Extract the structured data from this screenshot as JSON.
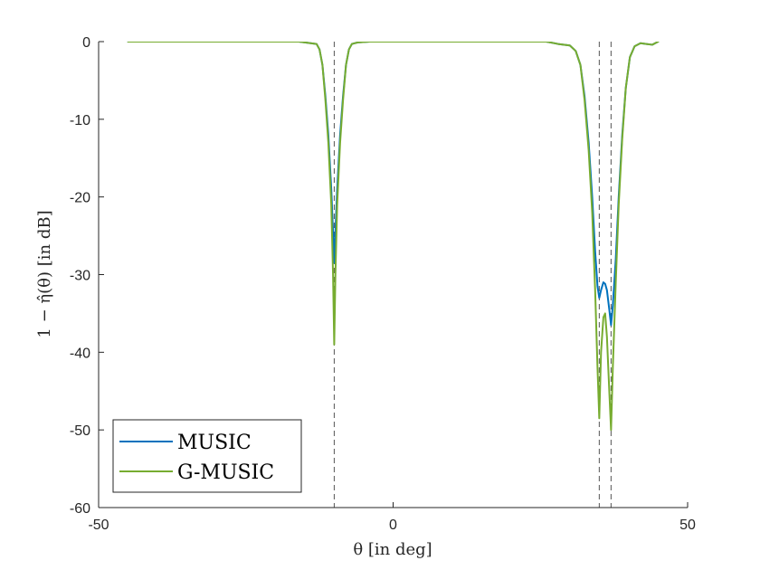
{
  "chart_data": {
    "type": "line",
    "title": "",
    "xlabel": "θ [in deg]",
    "ylabel": "1 − η̂(θ) [in dB]",
    "xlim": [
      -50,
      50
    ],
    "ylim": [
      -60,
      0
    ],
    "x_ticks": [
      -50,
      0,
      50
    ],
    "x_tick_labels": [
      "-50",
      "0",
      "50"
    ],
    "y_ticks": [
      0,
      -10,
      -20,
      -30,
      -40,
      -50,
      -60
    ],
    "y_tick_labels": [
      "0",
      "-10",
      "-20",
      "-30",
      "-40",
      "-50",
      "-60"
    ],
    "grid": false,
    "legend_position": "bottom-left",
    "true_directions": [
      -10,
      35,
      37
    ],
    "series": [
      {
        "name": "MUSIC",
        "color": "#0072BD",
        "x": [
          -45,
          -30,
          -20,
          -16,
          -14,
          -13,
          -12.5,
          -12,
          -11.5,
          -11,
          -10.5,
          -10.2,
          -10,
          -9.8,
          -9.5,
          -9,
          -8.5,
          -8,
          -7.5,
          -7,
          -6,
          -4,
          0,
          10,
          20,
          26,
          28,
          30,
          31,
          31.8,
          32.5,
          33.2,
          33.8,
          34.3,
          34.7,
          35,
          35.3,
          35.7,
          36,
          36.3,
          36.7,
          37,
          37.3,
          37.8,
          38.3,
          38.9,
          39.5,
          40.2,
          41,
          42,
          43,
          44,
          45
        ],
        "y": [
          0,
          0,
          0,
          0,
          -0.2,
          -0.3,
          -1,
          -3,
          -7,
          -12,
          -19,
          -24.5,
          -28.5,
          -24.5,
          -19,
          -12,
          -7,
          -3,
          -1,
          -0.3,
          -0.1,
          0,
          0,
          0,
          0,
          0,
          -0.3,
          -0.5,
          -1.2,
          -3,
          -7,
          -13,
          -20,
          -27,
          -31.5,
          -33,
          -32,
          -31,
          -31.2,
          -32,
          -34.5,
          -36.5,
          -34,
          -28,
          -20,
          -12,
          -6,
          -2,
          -0.6,
          -0.2,
          -0.3,
          -0.4,
          0
        ]
      },
      {
        "name": "G-MUSIC",
        "color": "#77AC30",
        "x": [
          -45,
          -30,
          -20,
          -16,
          -14,
          -13,
          -12.5,
          -12,
          -11.5,
          -11,
          -10.5,
          -10.2,
          -10,
          -9.8,
          -9.5,
          -9,
          -8.5,
          -8,
          -7.5,
          -7,
          -6,
          -4,
          0,
          10,
          20,
          26,
          28,
          30,
          31,
          31.8,
          32.5,
          33.2,
          33.8,
          34.3,
          34.7,
          35,
          35.3,
          35.7,
          36,
          36.3,
          36.7,
          37,
          37.3,
          37.8,
          38.3,
          38.9,
          39.5,
          40.2,
          41,
          42,
          43,
          44,
          45
        ],
        "y": [
          0,
          0,
          0,
          0,
          -0.2,
          -0.3,
          -1,
          -3,
          -7.5,
          -13,
          -21,
          -30,
          -39,
          -30,
          -21,
          -13,
          -7.5,
          -3,
          -1,
          -0.3,
          -0.1,
          0,
          0,
          0,
          0,
          0,
          -0.3,
          -0.5,
          -1.2,
          -3,
          -7.5,
          -14,
          -22,
          -32,
          -42,
          -48.5,
          -40,
          -35.5,
          -35,
          -38,
          -45,
          -50,
          -42,
          -31,
          -21,
          -12.5,
          -6,
          -2,
          -0.6,
          -0.2,
          -0.3,
          -0.4,
          0
        ]
      }
    ]
  }
}
